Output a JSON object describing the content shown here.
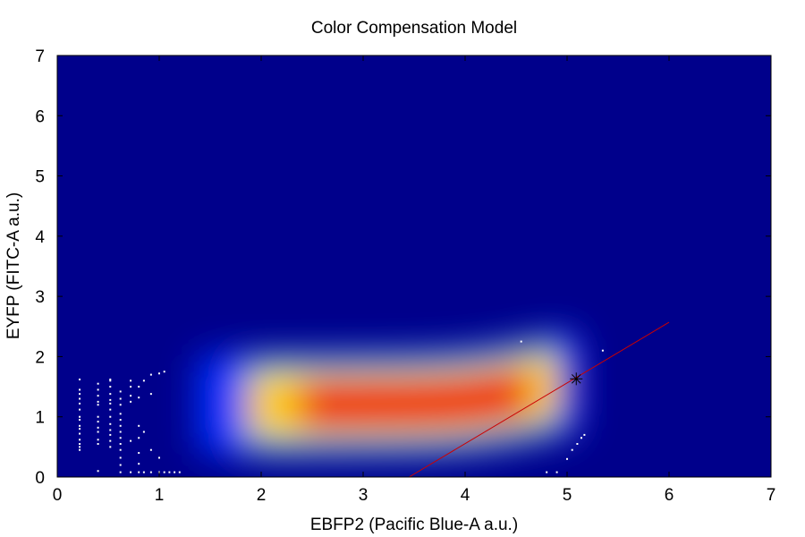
{
  "chart_data": {
    "type": "heatmap",
    "title": "Color Compensation Model",
    "xlabel": "EBFP2 (Pacific Blue-A a.u.)",
    "ylabel": "EYFP (FITC-A a.u.)",
    "xlim": [
      0,
      7
    ],
    "ylim": [
      0,
      7
    ],
    "xticks": [
      "0",
      "1",
      "2",
      "3",
      "4",
      "5",
      "6",
      "7"
    ],
    "yticks": [
      "0",
      "1",
      "2",
      "3",
      "4",
      "5",
      "6",
      "7"
    ],
    "colormap": "jet",
    "background_color": "#00008b",
    "density_ridge": {
      "x": [
        1.5,
        2.0,
        2.5,
        3.0,
        3.5,
        4.0,
        4.5,
        4.8,
        5.0
      ],
      "y": [
        1.2,
        1.2,
        1.2,
        1.21,
        1.22,
        1.26,
        1.38,
        1.5,
        1.55
      ]
    },
    "compensation_line": {
      "color": "#cc0000",
      "x": [
        3.45,
        6.0
      ],
      "y": [
        0.0,
        2.57
      ]
    },
    "marker": {
      "x": 5.09,
      "y": 1.63,
      "symbol": "asterisk"
    },
    "outlier_points": {
      "x": [
        0.22,
        0.22,
        0.22,
        0.22,
        0.22,
        0.22,
        0.22,
        0.22,
        0.22,
        0.22,
        0.22,
        0.22,
        0.22,
        0.22,
        0.22,
        0.4,
        0.4,
        0.4,
        0.4,
        0.4,
        0.4,
        0.4,
        0.4,
        0.4,
        0.4,
        0.4,
        0.4,
        0.52,
        0.52,
        0.52,
        0.52,
        0.52,
        0.52,
        0.52,
        0.52,
        0.52,
        0.52,
        0.52,
        0.52,
        0.52,
        0.62,
        0.62,
        0.62,
        0.62,
        0.62,
        0.62,
        0.62,
        0.62,
        0.62,
        0.62,
        0.62,
        0.62,
        0.62,
        0.72,
        0.72,
        0.72,
        0.72,
        0.72,
        0.72,
        0.8,
        0.8,
        0.8,
        0.8,
        0.8,
        0.8,
        0.8,
        0.85,
        0.85,
        0.85,
        0.92,
        0.92,
        0.92,
        0.92,
        1.0,
        1.0,
        1.0,
        1.05,
        1.05,
        1.1,
        1.15,
        1.2,
        4.8,
        4.9,
        5.0,
        5.05,
        5.1,
        5.14,
        5.17,
        5.35,
        4.55
      ],
      "y": [
        1.62,
        1.45,
        1.38,
        1.3,
        1.22,
        1.12,
        1.0,
        0.95,
        0.85,
        0.8,
        0.72,
        0.62,
        0.55,
        0.5,
        0.45,
        1.55,
        1.45,
        1.35,
        1.25,
        1.2,
        1.0,
        0.92,
        0.82,
        0.75,
        0.62,
        0.55,
        0.1,
        1.62,
        1.5,
        1.38,
        1.28,
        1.22,
        1.12,
        1.0,
        0.88,
        0.78,
        0.7,
        0.6,
        0.5,
        1.6,
        1.42,
        1.3,
        1.2,
        1.05,
        0.95,
        0.85,
        0.75,
        0.65,
        0.55,
        0.45,
        0.32,
        0.2,
        0.08,
        1.6,
        1.5,
        1.35,
        1.25,
        0.6,
        0.08,
        1.5,
        1.32,
        0.85,
        0.65,
        0.4,
        0.22,
        0.08,
        1.6,
        0.75,
        0.08,
        1.7,
        1.38,
        0.45,
        0.08,
        1.72,
        0.32,
        0.08,
        1.75,
        0.08,
        0.08,
        0.08,
        0.08,
        0.08,
        0.08,
        0.3,
        0.45,
        0.55,
        0.65,
        0.7,
        2.1,
        2.25
      ]
    }
  }
}
